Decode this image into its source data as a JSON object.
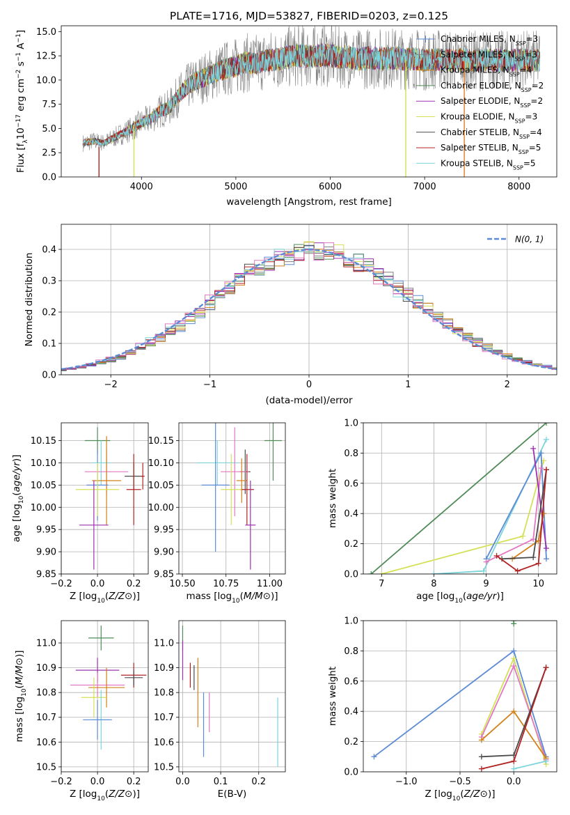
{
  "chart_data": [
    {
      "id": "spectrum",
      "type": "line",
      "title": "PLATE=1716, MJD=53827, FIBERID=0203, z=0.125",
      "xlabel": "wavelength [Angstrom, rest frame]",
      "ylabel_parts": [
        "Flux [f",
        "λ",
        "10",
        "−17",
        " erg cm",
        "−2",
        " s",
        "−1",
        " A",
        "−1",
        "]"
      ],
      "xlim": [
        3150,
        8400
      ],
      "ylim": [
        0,
        15.6
      ],
      "xticks": [
        4000,
        5000,
        6000,
        7000,
        8000
      ],
      "yticks": [
        0.0,
        2.5,
        5.0,
        7.5,
        10.0,
        12.5,
        15.0
      ],
      "grid": false,
      "legend_position": "upper right",
      "data_color": "#808080",
      "continuum": [
        [
          3380,
          3.5
        ],
        [
          3500,
          3.7
        ],
        [
          3600,
          3.5
        ],
        [
          3700,
          4.0
        ],
        [
          3800,
          4.5
        ],
        [
          3900,
          5.0
        ],
        [
          4000,
          5.6
        ],
        [
          4100,
          6.0
        ],
        [
          4200,
          6.8
        ],
        [
          4300,
          7.2
        ],
        [
          4400,
          8.5
        ],
        [
          4500,
          9.4
        ],
        [
          4600,
          10.0
        ],
        [
          4700,
          10.4
        ],
        [
          4800,
          10.8
        ],
        [
          4900,
          11.2
        ],
        [
          5000,
          11.4
        ],
        [
          5100,
          11.8
        ],
        [
          5200,
          11.7
        ],
        [
          5300,
          12.0
        ],
        [
          5400,
          12.1
        ],
        [
          5500,
          12.2
        ],
        [
          5600,
          12.5
        ],
        [
          5700,
          12.5
        ],
        [
          5800,
          12.4
        ],
        [
          5900,
          12.6
        ],
        [
          6000,
          12.5
        ],
        [
          6100,
          12.3
        ],
        [
          6200,
          12.4
        ],
        [
          6300,
          12.1
        ],
        [
          6400,
          12.3
        ],
        [
          6500,
          12.2
        ],
        [
          6600,
          12.2
        ],
        [
          6700,
          12.3
        ],
        [
          6800,
          12.1
        ],
        [
          6900,
          12.2
        ],
        [
          7000,
          12.0
        ],
        [
          7100,
          12.1
        ],
        [
          7200,
          12.2
        ],
        [
          7300,
          12.0
        ],
        [
          7400,
          12.1
        ],
        [
          7500,
          12.0
        ],
        [
          7600,
          12.0
        ],
        [
          7700,
          12.1
        ],
        [
          7800,
          12.0
        ],
        [
          7900,
          12.0
        ],
        [
          8000,
          12.1
        ],
        [
          8100,
          12.0
        ],
        [
          8220,
          12.0
        ]
      ],
      "spikes": [
        {
          "x": 3550,
          "from": 0,
          "to": 3.1,
          "color": "#b22222"
        },
        {
          "x": 3920,
          "from": 0,
          "to": 5.4,
          "color": "#d4e157"
        },
        {
          "x": 6800,
          "from": 0,
          "to": 12.1,
          "color": "#d4e157"
        },
        {
          "x": 7420,
          "from": 0,
          "to": 12.0,
          "color": "#e67e22"
        }
      ],
      "series": [
        {
          "name": "Chabrier MILES",
          "sub": "SSP",
          "n": 3,
          "color": "#5b8ad6",
          "marker": "+"
        },
        {
          "name": "Salpeter MILES",
          "sub": "SSP",
          "n": 3,
          "color": "#7f7f7f",
          "marker": "+"
        },
        {
          "name": "Kroupa MILES",
          "sub": "SSP",
          "n": 4,
          "color": "#d2801a",
          "marker": "line"
        },
        {
          "name": "Chabrier ELODIE",
          "sub": "SSP",
          "n": 2,
          "color": "#4f8b57",
          "marker": "line"
        },
        {
          "name": "Salpeter ELODIE",
          "sub": "SSP",
          "n": 2,
          "color": "#9c30b0",
          "marker": "line"
        },
        {
          "name": "Kroupa ELODIE",
          "sub": "SSP",
          "n": 3,
          "color": "#d4e157",
          "marker": "line"
        },
        {
          "name": "Chabrier STELIB",
          "sub": "SSP",
          "n": 4,
          "color": "#4a4a4a",
          "marker": "line"
        },
        {
          "name": "Salpeter STELIB",
          "sub": "SSP",
          "n": 5,
          "color": "#b22222",
          "marker": "line"
        },
        {
          "name": "Kroupa STELIB",
          "sub": "SSP",
          "n": 5,
          "color": "#7dd4dc",
          "marker": "line"
        }
      ]
    },
    {
      "id": "residuals",
      "type": "line",
      "xlabel": "(data-model)/error",
      "ylabel": "Normed distribution",
      "xlim": [
        -2.5,
        2.5
      ],
      "ylim": [
        0,
        0.48
      ],
      "xticks": [
        -2,
        -1,
        0,
        1,
        2
      ],
      "yticks": [
        0.0,
        0.1,
        0.2,
        0.3,
        0.4
      ],
      "grid": true,
      "legend_position": "upper right",
      "reference_label": "N(0, 1)",
      "reference_color": "#5b8ad6",
      "hist_colors": [
        "#5b8ad6",
        "#7f7f7f",
        "#d2801a",
        "#4f8b57",
        "#9c30b0",
        "#d4e157",
        "#4a4a4a",
        "#b22222",
        "#7dd4dc",
        "#e377c2"
      ],
      "bin_width": 0.1
    },
    {
      "id": "age_vs_z",
      "type": "scatter",
      "xlabel": "Z [log10(Z/Z⊙)]",
      "ylabel": "age  [log10(age/yr)]",
      "xlim": [
        -0.2,
        0.28
      ],
      "ylim": [
        9.85,
        10.19
      ],
      "xticks": [
        -0.2,
        0.0,
        0.2
      ],
      "yticks": [
        9.85,
        9.9,
        9.95,
        10.0,
        10.05,
        10.1,
        10.15
      ],
      "grid": true,
      "points": [
        {
          "x": 0.0,
          "y": 10.15,
          "xerr": 0.07,
          "yerr": 0.03,
          "color": "#4f8b57"
        },
        {
          "x": 0.02,
          "y": 10.1,
          "xerr": 0.05,
          "yerr": 0.05,
          "color": "#7dd4dc"
        },
        {
          "x": 0.2,
          "y": 10.07,
          "xerr": 0.05,
          "yerr": 0.03,
          "color": "#4a4a4a"
        },
        {
          "x": 0.05,
          "y": 10.08,
          "xerr": 0.12,
          "yerr": 0.05,
          "color": "#e377c2"
        },
        {
          "x": 0.25,
          "y": 10.07,
          "xerr": 0.01,
          "yerr": 0.03,
          "color": "#b22222"
        },
        {
          "x": 0.05,
          "y": 10.06,
          "xerr": 0.08,
          "yerr": 0.1,
          "color": "#d2801a"
        },
        {
          "x": 0.0,
          "y": 10.05,
          "xerr": 0.06,
          "yerr": 0.08,
          "color": "#5b8ad6"
        },
        {
          "x": 0.2,
          "y": 10.04,
          "xerr": 0.04,
          "yerr": 0.08,
          "color": "#b22222"
        },
        {
          "x": 0.0,
          "y": 10.04,
          "xerr": 0.12,
          "yerr": 0.06,
          "color": "#d4e157"
        },
        {
          "x": -0.02,
          "y": 9.96,
          "xerr": 0.08,
          "yerr": 0.1,
          "color": "#9c30b0"
        }
      ]
    },
    {
      "id": "age_vs_mass",
      "type": "scatter",
      "xlabel": "mass [log10(M/M⊙)]",
      "ylabel": "",
      "xlim": [
        10.48,
        11.09
      ],
      "ylim": [
        9.85,
        10.19
      ],
      "xticks": [
        10.5,
        10.75,
        11.0
      ],
      "yticks": [
        9.85,
        9.9,
        9.95,
        10.0,
        10.05,
        10.1,
        10.15
      ],
      "grid": true,
      "points": [
        {
          "x": 11.02,
          "y": 10.15,
          "xerr": 0.05,
          "yerr": 0.09,
          "color": "#4f8b57"
        },
        {
          "x": 10.7,
          "y": 10.1,
          "xerr": 0.12,
          "yerr": 0.05,
          "color": "#7dd4dc"
        },
        {
          "x": 10.86,
          "y": 10.08,
          "xerr": 0.03,
          "yerr": 0.05,
          "color": "#4a4a4a"
        },
        {
          "x": 10.8,
          "y": 10.08,
          "xerr": 0.08,
          "yerr": 0.1,
          "color": "#e377c2"
        },
        {
          "x": 10.84,
          "y": 10.06,
          "xerr": 0.03,
          "yerr": 0.05,
          "color": "#d2801a"
        },
        {
          "x": 10.69,
          "y": 10.05,
          "xerr": 0.08,
          "yerr": 0.15,
          "color": "#5b8ad6"
        },
        {
          "x": 10.87,
          "y": 10.04,
          "xerr": 0.04,
          "yerr": 0.08,
          "color": "#b22222"
        },
        {
          "x": 10.78,
          "y": 10.04,
          "xerr": 0.06,
          "yerr": 0.08,
          "color": "#d4e157"
        },
        {
          "x": 10.89,
          "y": 9.96,
          "xerr": 0.03,
          "yerr": 0.1,
          "color": "#9c30b0"
        }
      ]
    },
    {
      "id": "mass_weight_vs_age",
      "type": "line",
      "xlabel": "age  [log10(age/yr)]",
      "ylabel": "mass weight",
      "xlim": [
        6.65,
        10.35
      ],
      "ylim": [
        0,
        1.0
      ],
      "xticks": [
        7,
        8,
        9,
        10
      ],
      "yticks": [
        0.0,
        0.2,
        0.4,
        0.6,
        0.8,
        1.0
      ],
      "grid": true,
      "series": [
        {
          "color": "#4f8b57",
          "points": [
            [
              6.8,
              0.0
            ],
            [
              10.15,
              1.0
            ]
          ]
        },
        {
          "color": "#d4e157",
          "points": [
            [
              7.0,
              0.0
            ],
            [
              9.7,
              0.25
            ],
            [
              10.1,
              0.75
            ]
          ]
        },
        {
          "color": "#7dd4dc",
          "points": [
            [
              8.0,
              0.0
            ],
            [
              8.95,
              0.02
            ],
            [
              10.15,
              0.89
            ]
          ]
        },
        {
          "color": "#5b8ad6",
          "points": [
            [
              9.0,
              0.1
            ],
            [
              10.05,
              0.8
            ],
            [
              10.15,
              0.1
            ]
          ]
        },
        {
          "color": "#e377c2",
          "points": [
            [
              9.0,
              0.08
            ],
            [
              9.9,
              0.23
            ],
            [
              10.05,
              0.7
            ]
          ]
        },
        {
          "color": "#9c30b0",
          "points": [
            [
              9.9,
              0.83
            ],
            [
              10.15,
              0.17
            ]
          ]
        },
        {
          "color": "#d2801a",
          "points": [
            [
              9.5,
              0.1
            ],
            [
              10.0,
              0.22
            ],
            [
              10.1,
              0.4
            ]
          ]
        },
        {
          "color": "#4a4a4a",
          "points": [
            [
              9.3,
              0.1
            ],
            [
              9.9,
              0.11
            ],
            [
              10.15,
              0.69
            ]
          ]
        },
        {
          "color": "#b22222",
          "points": [
            [
              9.2,
              0.12
            ],
            [
              9.6,
              0.02
            ],
            [
              10.0,
              0.07
            ],
            [
              10.15,
              0.69
            ]
          ]
        }
      ]
    },
    {
      "id": "mass_vs_z",
      "type": "scatter",
      "xlabel": "Z [log10(Z/Z⊙)]",
      "ylabel": "mass [log10(M/M⊙)]",
      "xlim": [
        -0.2,
        0.28
      ],
      "ylim": [
        10.48,
        11.09
      ],
      "xticks": [
        -0.2,
        0.0,
        0.2
      ],
      "yticks": [
        10.5,
        10.6,
        10.7,
        10.8,
        10.9,
        11.0
      ],
      "grid": true,
      "points": [
        {
          "x": 0.02,
          "y": 11.02,
          "xerr": 0.07,
          "yerr": 0.05,
          "color": "#4f8b57"
        },
        {
          "x": 0.2,
          "y": 10.87,
          "xerr": 0.07,
          "yerr": 0.05,
          "color": "#b22222"
        },
        {
          "x": 0.2,
          "y": 10.86,
          "xerr": 0.05,
          "yerr": 0.03,
          "color": "#4a4a4a"
        },
        {
          "x": 0.0,
          "y": 10.89,
          "xerr": 0.12,
          "yerr": 0.05,
          "color": "#9c30b0"
        },
        {
          "x": 0.0,
          "y": 10.83,
          "xerr": 0.15,
          "yerr": 0.05,
          "color": "#e377c2"
        },
        {
          "x": 0.05,
          "y": 10.82,
          "xerr": 0.1,
          "yerr": 0.08,
          "color": "#d2801a"
        },
        {
          "x": -0.02,
          "y": 10.78,
          "xerr": 0.07,
          "yerr": 0.08,
          "color": "#d4e157"
        },
        {
          "x": 0.02,
          "y": 10.69,
          "xerr": 0.05,
          "yerr": 0.12,
          "color": "#7dd4dc"
        },
        {
          "x": 0.0,
          "y": 10.69,
          "xerr": 0.08,
          "yerr": 0.08,
          "color": "#5b8ad6"
        }
      ]
    },
    {
      "id": "mass_vs_ebv",
      "type": "scatter",
      "xlabel": "E(B-V)",
      "ylabel": "",
      "xlim": [
        -0.01,
        0.27
      ],
      "ylim": [
        10.48,
        11.09
      ],
      "xticks": [
        0.0,
        0.1,
        0.2
      ],
      "yticks": [
        10.5,
        10.6,
        10.7,
        10.8,
        10.9,
        11.0
      ],
      "grid": true,
      "points": [
        {
          "x": 0.0,
          "y": 11.02,
          "xerr": 0,
          "yerr": 0.05,
          "color": "#4f8b57"
        },
        {
          "x": 0.0,
          "y": 10.93,
          "xerr": 0,
          "yerr": 0.08,
          "color": "#9c30b0"
        },
        {
          "x": 0.02,
          "y": 10.87,
          "xerr": 0,
          "yerr": 0.05,
          "color": "#b22222"
        },
        {
          "x": 0.03,
          "y": 10.86,
          "xerr": 0,
          "yerr": 0.05,
          "color": "#4a4a4a"
        },
        {
          "x": 0.04,
          "y": 10.8,
          "xerr": 0,
          "yerr": 0.14,
          "color": "#d2801a"
        },
        {
          "x": 0.055,
          "y": 10.67,
          "xerr": 0,
          "yerr": 0.13,
          "color": "#5b8ad6"
        },
        {
          "x": 0.07,
          "y": 10.72,
          "xerr": 0,
          "yerr": 0.08,
          "color": "#e377c2"
        },
        {
          "x": 0.25,
          "y": 10.64,
          "xerr": 0,
          "yerr": 0.14,
          "color": "#7dd4dc"
        }
      ]
    },
    {
      "id": "mass_weight_vs_z",
      "type": "line",
      "xlabel": "Z [log10(Z/Z⊙)]",
      "ylabel": "mass weight",
      "xlim": [
        -1.4,
        0.4
      ],
      "ylim": [
        0,
        1.0
      ],
      "xticks": [
        -1.0,
        -0.5,
        0.0
      ],
      "yticks": [
        0.0,
        0.2,
        0.4,
        0.6,
        0.8,
        1.0
      ],
      "grid": true,
      "series": [
        {
          "color": "#5b8ad6",
          "points": [
            [
              -1.3,
              0.1
            ],
            [
              0.0,
              0.8
            ],
            [
              0.3,
              0.1
            ]
          ]
        },
        {
          "color": "#d4e157",
          "points": [
            [
              -0.3,
              0.25
            ],
            [
              0.0,
              0.75
            ],
            [
              0.3,
              0.05
            ]
          ]
        },
        {
          "color": "#e377c2",
          "points": [
            [
              -0.3,
              0.23
            ],
            [
              0.0,
              0.7
            ],
            [
              0.3,
              0.08
            ]
          ]
        },
        {
          "color": "#d2801a",
          "points": [
            [
              -0.3,
              0.21
            ],
            [
              0.0,
              0.4
            ],
            [
              0.3,
              0.09
            ]
          ]
        },
        {
          "color": "#4a4a4a",
          "points": [
            [
              -0.3,
              0.1
            ],
            [
              0.0,
              0.11
            ],
            [
              0.3,
              0.69
            ]
          ]
        },
        {
          "color": "#b22222",
          "points": [
            [
              -0.3,
              0.02
            ],
            [
              0.0,
              0.07
            ],
            [
              0.3,
              0.69
            ]
          ]
        },
        {
          "color": "#7dd4dc",
          "points": [
            [
              0.0,
              0.02
            ],
            [
              0.3,
              0.07
            ]
          ]
        },
        {
          "color": "#4f8b57",
          "points": [
            [
              0.0,
              1.0
            ],
            [
              0.0,
              0.98
            ]
          ]
        }
      ]
    }
  ]
}
